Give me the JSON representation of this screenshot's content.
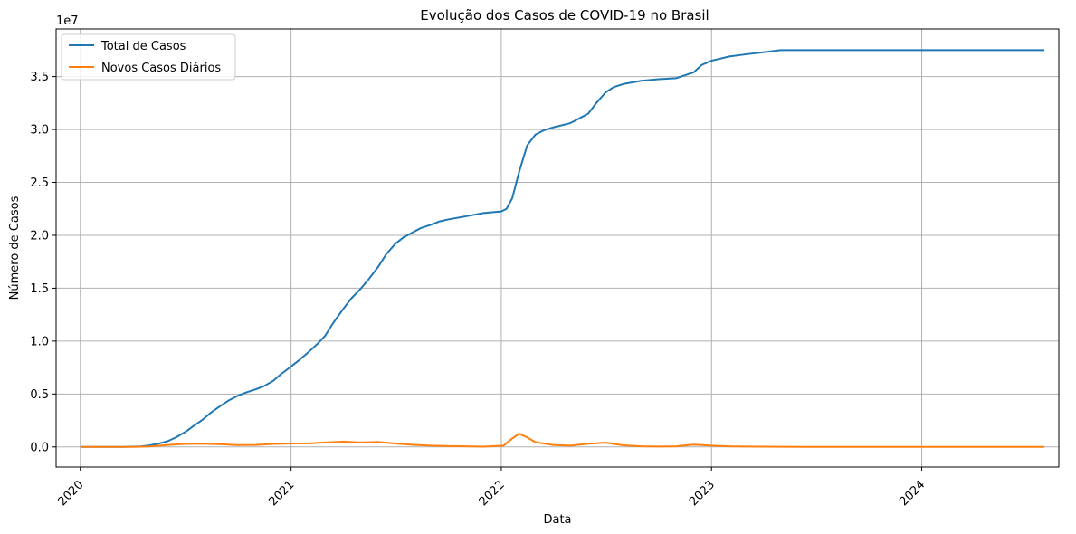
{
  "chart_data": {
    "type": "line",
    "title": "Evolução dos Casos de COVID-19 no Brasil",
    "xlabel": "Data",
    "ylabel": "Número de Casos",
    "y_offset_label": "1e7",
    "grid": true,
    "legend_position": "upper-left",
    "xlim": [
      "2019-11-20",
      "2024-08-26"
    ],
    "ylim": [
      -1900000,
      39500000
    ],
    "x_ticks": [
      {
        "date": "2020-01-01",
        "label": "2020"
      },
      {
        "date": "2021-01-01",
        "label": "2021"
      },
      {
        "date": "2022-01-01",
        "label": "2022"
      },
      {
        "date": "2023-01-01",
        "label": "2023"
      },
      {
        "date": "2024-01-01",
        "label": "2024"
      }
    ],
    "y_ticks": [
      {
        "value": 0,
        "label": "0.0"
      },
      {
        "value": 5000000,
        "label": "0.5"
      },
      {
        "value": 10000000,
        "label": "1.0"
      },
      {
        "value": 15000000,
        "label": "1.5"
      },
      {
        "value": 20000000,
        "label": "2.0"
      },
      {
        "value": 25000000,
        "label": "2.5"
      },
      {
        "value": 30000000,
        "label": "3.0"
      },
      {
        "value": 35000000,
        "label": "3.5"
      }
    ],
    "series": [
      {
        "name": "Total de Casos",
        "color": "#1f77b4",
        "points": [
          [
            "2020-01-01",
            0
          ],
          [
            "2020-03-15",
            0
          ],
          [
            "2020-04-15",
            50000
          ],
          [
            "2020-05-01",
            150000
          ],
          [
            "2020-05-15",
            300000
          ],
          [
            "2020-06-01",
            550000
          ],
          [
            "2020-06-15",
            900000
          ],
          [
            "2020-07-01",
            1400000
          ],
          [
            "2020-07-15",
            1950000
          ],
          [
            "2020-08-01",
            2600000
          ],
          [
            "2020-08-15",
            3250000
          ],
          [
            "2020-09-01",
            3900000
          ],
          [
            "2020-09-15",
            4400000
          ],
          [
            "2020-10-01",
            4850000
          ],
          [
            "2020-10-15",
            5150000
          ],
          [
            "2020-11-01",
            5450000
          ],
          [
            "2020-11-15",
            5750000
          ],
          [
            "2020-12-01",
            6250000
          ],
          [
            "2020-12-15",
            6900000
          ],
          [
            "2021-01-01",
            7600000
          ],
          [
            "2021-01-15",
            8200000
          ],
          [
            "2021-02-01",
            9000000
          ],
          [
            "2021-02-15",
            9700000
          ],
          [
            "2021-03-01",
            10500000
          ],
          [
            "2021-03-15",
            11700000
          ],
          [
            "2021-04-01",
            13000000
          ],
          [
            "2021-04-15",
            14000000
          ],
          [
            "2021-05-01",
            14900000
          ],
          [
            "2021-05-15",
            15800000
          ],
          [
            "2021-06-01",
            17000000
          ],
          [
            "2021-06-15",
            18200000
          ],
          [
            "2021-07-01",
            19200000
          ],
          [
            "2021-07-15",
            19800000
          ],
          [
            "2021-08-01",
            20300000
          ],
          [
            "2021-08-15",
            20700000
          ],
          [
            "2021-09-01",
            21000000
          ],
          [
            "2021-09-15",
            21300000
          ],
          [
            "2021-10-01",
            21500000
          ],
          [
            "2021-11-01",
            21800000
          ],
          [
            "2021-12-01",
            22100000
          ],
          [
            "2022-01-01",
            22250000
          ],
          [
            "2022-01-10",
            22500000
          ],
          [
            "2022-01-20",
            23500000
          ],
          [
            "2022-02-01",
            26000000
          ],
          [
            "2022-02-15",
            28500000
          ],
          [
            "2022-03-01",
            29500000
          ],
          [
            "2022-03-15",
            29900000
          ],
          [
            "2022-04-01",
            30200000
          ],
          [
            "2022-05-01",
            30600000
          ],
          [
            "2022-06-01",
            31500000
          ],
          [
            "2022-06-15",
            32500000
          ],
          [
            "2022-07-01",
            33500000
          ],
          [
            "2022-07-15",
            34000000
          ],
          [
            "2022-08-01",
            34300000
          ],
          [
            "2022-09-01",
            34600000
          ],
          [
            "2022-10-01",
            34750000
          ],
          [
            "2022-11-01",
            34850000
          ],
          [
            "2022-12-01",
            35400000
          ],
          [
            "2022-12-15",
            36100000
          ],
          [
            "2023-01-01",
            36500000
          ],
          [
            "2023-02-01",
            36900000
          ],
          [
            "2023-03-01",
            37100000
          ],
          [
            "2023-04-01",
            37300000
          ],
          [
            "2023-05-01",
            37500000
          ],
          [
            "2023-06-01",
            37500000
          ],
          [
            "2024-08-01",
            37500000
          ]
        ]
      },
      {
        "name": "Novos Casos Diários",
        "color": "#ff7f0e",
        "points": [
          [
            "2020-01-01",
            0
          ],
          [
            "2020-04-01",
            5000
          ],
          [
            "2020-05-01",
            50000
          ],
          [
            "2020-06-01",
            180000
          ],
          [
            "2020-07-01",
            280000
          ],
          [
            "2020-08-01",
            300000
          ],
          [
            "2020-09-01",
            250000
          ],
          [
            "2020-10-01",
            170000
          ],
          [
            "2020-11-01",
            180000
          ],
          [
            "2020-12-01",
            280000
          ],
          [
            "2021-01-01",
            320000
          ],
          [
            "2021-02-01",
            330000
          ],
          [
            "2021-03-01",
            420000
          ],
          [
            "2021-04-01",
            500000
          ],
          [
            "2021-05-01",
            420000
          ],
          [
            "2021-06-01",
            460000
          ],
          [
            "2021-07-01",
            320000
          ],
          [
            "2021-08-01",
            200000
          ],
          [
            "2021-09-01",
            120000
          ],
          [
            "2021-10-01",
            80000
          ],
          [
            "2021-11-01",
            60000
          ],
          [
            "2021-12-01",
            30000
          ],
          [
            "2022-01-05",
            120000
          ],
          [
            "2022-01-20",
            800000
          ],
          [
            "2022-02-01",
            1250000
          ],
          [
            "2022-02-15",
            900000
          ],
          [
            "2022-03-01",
            450000
          ],
          [
            "2022-04-01",
            180000
          ],
          [
            "2022-05-01",
            120000
          ],
          [
            "2022-06-01",
            300000
          ],
          [
            "2022-07-01",
            400000
          ],
          [
            "2022-08-01",
            150000
          ],
          [
            "2022-09-01",
            60000
          ],
          [
            "2022-10-01",
            40000
          ],
          [
            "2022-11-01",
            60000
          ],
          [
            "2022-12-01",
            220000
          ],
          [
            "2023-01-01",
            120000
          ],
          [
            "2023-02-01",
            60000
          ],
          [
            "2023-03-01",
            40000
          ],
          [
            "2023-05-01",
            15000
          ],
          [
            "2023-07-01",
            5000
          ],
          [
            "2024-08-01",
            0
          ]
        ]
      }
    ]
  }
}
